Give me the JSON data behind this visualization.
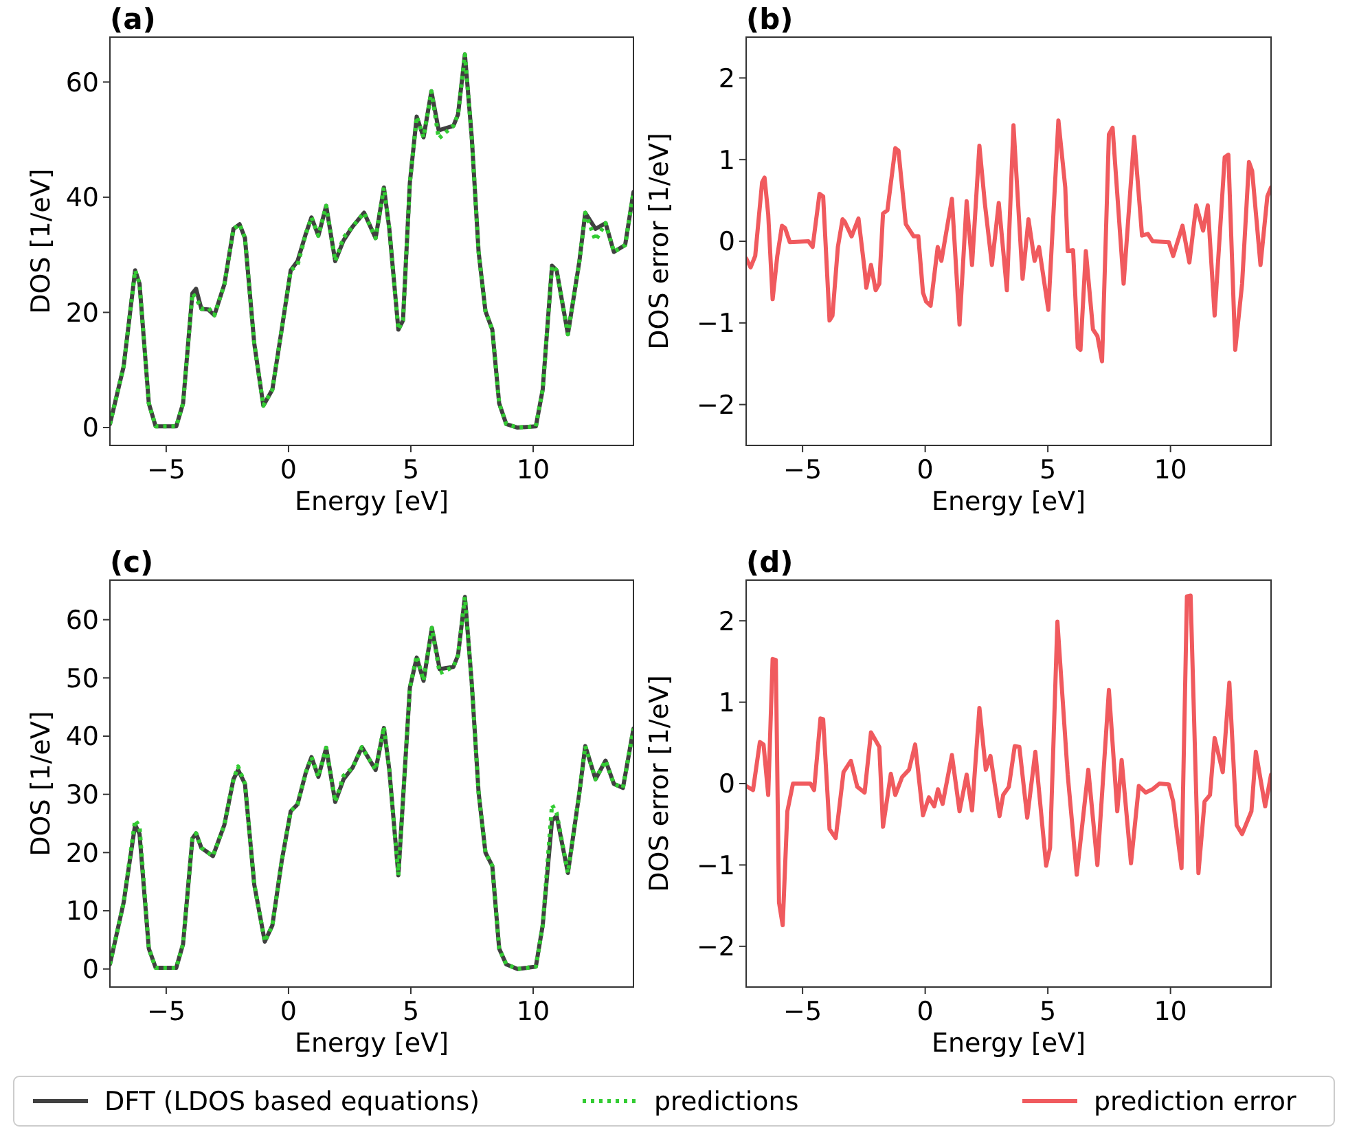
{
  "chart_data": [
    {
      "type": "line",
      "title": "(a)",
      "xlabel": "Energy [eV]",
      "ylabel": "DOS [1/eV]",
      "xlim": [
        -7.3,
        14.1
      ],
      "ylim": [
        -3.1,
        67.8
      ],
      "xticks": [
        -5,
        0,
        5,
        10
      ],
      "yticks": [
        0,
        20,
        40,
        60
      ],
      "legend": "bottom",
      "series": [
        {
          "name": "DFT (LDOS based equations)",
          "color": "#404040",
          "line_style": "solid",
          "x": [
            -7.3,
            -6.74,
            -6.27,
            -6.09,
            -5.71,
            -5.43,
            -4.59,
            -4.31,
            -3.93,
            -3.78,
            -3.56,
            -3.28,
            -3.03,
            -2.62,
            -2.25,
            -2.0,
            -1.78,
            -1.4,
            -1.03,
            -0.66,
            -0.28,
            0.09,
            0.37,
            0.71,
            0.94,
            1.22,
            1.54,
            1.91,
            2.25,
            2.62,
            3.09,
            3.56,
            3.9,
            4.12,
            4.49,
            4.68,
            4.96,
            5.24,
            5.52,
            5.84,
            6.14,
            6.74,
            6.93,
            7.21,
            7.49,
            7.77,
            8.05,
            8.33,
            8.61,
            8.9,
            9.36,
            10.11,
            10.39,
            10.77,
            10.96,
            11.42,
            11.89,
            12.13,
            12.55,
            12.96,
            13.3,
            13.76,
            14.1
          ],
          "values": [
            0.6,
            10.6,
            27.3,
            25,
            4.2,
            0.2,
            0.2,
            4.2,
            23.3,
            24.1,
            20.6,
            20.5,
            19.5,
            24.9,
            34.5,
            35.3,
            32.9,
            14.6,
            3.8,
            6.6,
            17,
            27.3,
            28.9,
            33.7,
            36.5,
            33.3,
            38.5,
            28.9,
            32.5,
            34.9,
            37.3,
            32.9,
            41.7,
            34.5,
            17,
            18.6,
            42.5,
            54,
            50.4,
            58.4,
            51.6,
            52.4,
            54.4,
            64.8,
            50.4,
            30.5,
            20.2,
            17,
            4.2,
            0.6,
            0,
            0.2,
            6.6,
            28.1,
            27.3,
            16.2,
            28.9,
            37.3,
            34.5,
            35.5,
            30.5,
            31.7,
            40.9
          ]
        },
        {
          "name": "predictions",
          "color": "#33cc33",
          "line_style": "dotted",
          "x": [
            -7.3,
            -6.74,
            -6.27,
            -6.09,
            -5.71,
            -5.43,
            -4.59,
            -4.31,
            -3.93,
            -3.78,
            -3.56,
            -3.28,
            -3.03,
            -2.62,
            -2.25,
            -2.0,
            -1.78,
            -1.4,
            -1.03,
            -0.66,
            -0.28,
            0.09,
            0.37,
            0.71,
            0.94,
            1.22,
            1.54,
            1.91,
            2.25,
            2.62,
            3.09,
            3.56,
            3.9,
            4.12,
            4.49,
            4.68,
            4.96,
            5.24,
            5.52,
            5.84,
            6.14,
            6.74,
            6.93,
            7.21,
            7.49,
            7.77,
            8.05,
            8.33,
            8.61,
            8.9,
            9.36,
            10.11,
            10.39,
            10.77,
            10.96,
            11.42,
            11.89,
            12.13,
            12.55,
            12.96,
            13.3,
            13.76,
            14.1
          ],
          "values": [
            0.6,
            10.6,
            27.3,
            25,
            4.2,
            0.2,
            0.2,
            4.2,
            23.3,
            22.5,
            20.6,
            20.8,
            19.5,
            24.9,
            34.5,
            35.3,
            32.9,
            14.6,
            3.8,
            6.6,
            17,
            27.3,
            28.2,
            33.7,
            36.5,
            33.3,
            38.5,
            28.9,
            33,
            34.9,
            37.3,
            32.9,
            41.7,
            34.5,
            17,
            18.6,
            42.5,
            54,
            50.4,
            58.4,
            50.2,
            52.4,
            54.4,
            64.8,
            50.4,
            30.5,
            20.2,
            17,
            4.2,
            0.6,
            0,
            0.2,
            6.6,
            28.1,
            27.3,
            16.2,
            28.9,
            37.3,
            32.5,
            35.5,
            30.5,
            31.7,
            40.9
          ]
        }
      ]
    },
    {
      "type": "line",
      "title": "(b)",
      "xlabel": "Energy [eV]",
      "ylabel": "DOS error [1/eV]",
      "xlim": [
        -7.3,
        14.1
      ],
      "ylim": [
        -2.5,
        2.5
      ],
      "xticks": [
        -5,
        0,
        5,
        10
      ],
      "yticks": [
        -2,
        -1,
        0,
        1,
        2
      ],
      "legend": "bottom",
      "series": [
        {
          "name": "prediction error",
          "color": "#f05a5e",
          "line_style": "solid",
          "x": [
            -7.3,
            -7.12,
            -6.93,
            -6.65,
            -6.55,
            -6.4,
            -6.22,
            -6.03,
            -5.84,
            -5.71,
            -5.52,
            -4.76,
            -4.59,
            -4.31,
            -4.16,
            -3.9,
            -3.78,
            -3.56,
            -3.37,
            -3.28,
            -3.0,
            -2.72,
            -2.47,
            -2.4,
            -2.21,
            -2.02,
            -1.87,
            -1.72,
            -1.54,
            -1.22,
            -1.09,
            -0.79,
            -0.47,
            -0.28,
            -0.09,
            0.04,
            0.22,
            0.51,
            0.66,
            1.09,
            1.4,
            1.69,
            1.91,
            2.21,
            2.43,
            2.72,
            3.0,
            3.33,
            3.6,
            3.97,
            4.21,
            4.46,
            4.64,
            5.02,
            5.43,
            5.71,
            5.81,
            6.03,
            6.22,
            6.33,
            6.55,
            6.84,
            7.02,
            7.21,
            7.49,
            7.64,
            8.09,
            8.52,
            8.84,
            9.08,
            9.27,
            9.93,
            10.11,
            10.49,
            10.77,
            11.05,
            11.33,
            11.52,
            11.8,
            12.21,
            12.36,
            12.64,
            12.92,
            13.2,
            13.33,
            13.67,
            13.95,
            14.1
          ],
          "values": [
            -0.21,
            -0.32,
            -0.18,
            0.72,
            0.78,
            0.33,
            -0.71,
            -0.18,
            0.19,
            0.16,
            -0.01,
            0,
            -0.07,
            0.58,
            0.55,
            -0.97,
            -0.91,
            -0.07,
            0.27,
            0.24,
            0.06,
            0.28,
            -0.35,
            -0.57,
            -0.29,
            -0.6,
            -0.52,
            0.34,
            0.38,
            1.14,
            1.11,
            0.21,
            0.06,
            0.06,
            -0.63,
            -0.74,
            -0.79,
            -0.07,
            -0.24,
            0.52,
            -1.02,
            0.49,
            -0.29,
            1.17,
            0.47,
            -0.29,
            0.47,
            -0.6,
            1.42,
            -0.46,
            0.27,
            -0.24,
            -0.07,
            -0.84,
            1.48,
            0.66,
            -0.12,
            -0.11,
            -1.3,
            -1.33,
            -0.12,
            -1.08,
            -1.16,
            -1.47,
            1.31,
            1.39,
            -0.52,
            1.28,
            0.07,
            0.09,
            0,
            -0.01,
            -0.18,
            0.19,
            -0.26,
            0.44,
            0.13,
            0.44,
            -0.91,
            1.03,
            1.06,
            -1.33,
            -0.52,
            0.97,
            0.86,
            -0.29,
            0.55,
            0.66
          ]
        }
      ]
    },
    {
      "type": "line",
      "title": "(c)",
      "xlabel": "Energy [eV]",
      "ylabel": "DOS [1/eV]",
      "xlim": [
        -7.3,
        14.1
      ],
      "ylim": [
        -3.1,
        66.8
      ],
      "xticks": [
        -5,
        0,
        5,
        10
      ],
      "yticks": [
        0,
        10,
        20,
        30,
        40,
        50,
        60
      ],
      "series": [
        {
          "color": "#404040",
          "line_style": "solid",
          "x": [
            -7.3,
            -6.74,
            -6.27,
            -6.09,
            -5.71,
            -5.43,
            -4.59,
            -4.31,
            -3.93,
            -3.78,
            -3.56,
            -3.09,
            -2.62,
            -2.25,
            -2.06,
            -1.78,
            -1.4,
            -0.97,
            -0.66,
            -0.28,
            0.09,
            0.37,
            0.71,
            0.94,
            1.22,
            1.54,
            1.91,
            2.25,
            2.62,
            3.0,
            3.56,
            3.9,
            4.12,
            4.49,
            4.96,
            5.24,
            5.52,
            5.86,
            6.18,
            6.74,
            6.93,
            7.21,
            7.49,
            7.77,
            8.05,
            8.33,
            8.61,
            8.9,
            9.36,
            10.11,
            10.39,
            10.77,
            10.96,
            11.42,
            11.89,
            12.13,
            12.55,
            12.96,
            13.3,
            13.67,
            14.1
          ],
          "values": [
            0.8,
            11.4,
            24.8,
            23.2,
            3.5,
            0.2,
            0.2,
            4.3,
            22.4,
            23.3,
            20.8,
            19.4,
            24.8,
            32.6,
            34.2,
            31.8,
            14.5,
            4.7,
            7.5,
            18.5,
            27.1,
            28.3,
            33.8,
            36.4,
            33,
            38,
            28.7,
            32.6,
            34.6,
            38.1,
            34.2,
            41.4,
            34.2,
            16.1,
            48.3,
            53.5,
            49.5,
            58.6,
            51.5,
            51.9,
            53.9,
            63.9,
            49.1,
            30.3,
            20,
            17.7,
            3.5,
            0.8,
            0,
            0.4,
            7.5,
            25.5,
            26.3,
            16.5,
            30.3,
            38.3,
            32.6,
            35.8,
            31.8,
            31.1,
            41.3
          ]
        },
        {
          "color": "#33cc33",
          "line_style": "dotted",
          "x": [
            -7.3,
            -6.74,
            -6.27,
            -6.09,
            -5.71,
            -5.43,
            -4.59,
            -4.31,
            -3.93,
            -3.78,
            -3.56,
            -3.09,
            -2.62,
            -2.25,
            -2.06,
            -1.78,
            -1.4,
            -0.97,
            -0.66,
            -0.28,
            0.09,
            0.37,
            0.71,
            0.94,
            1.22,
            1.54,
            1.91,
            2.25,
            2.62,
            3.0,
            3.56,
            3.9,
            4.12,
            4.49,
            4.96,
            5.24,
            5.52,
            5.86,
            6.18,
            6.74,
            6.93,
            7.21,
            7.49,
            7.77,
            8.05,
            8.33,
            8.61,
            8.9,
            9.36,
            10.11,
            10.39,
            10.77,
            10.96,
            11.42,
            11.89,
            12.13,
            12.55,
            12.96,
            13.3,
            13.67,
            14.1
          ],
          "values": [
            0.8,
            11.4,
            25.6,
            24.5,
            3.5,
            0.2,
            0.2,
            4.3,
            22.4,
            23.3,
            20.8,
            19.4,
            24.8,
            32.6,
            34.8,
            31.8,
            14.5,
            4.7,
            7.5,
            18.5,
            27.1,
            28.3,
            33.8,
            36.4,
            33,
            38,
            28.7,
            33.2,
            34.6,
            38.1,
            34.2,
            41.6,
            34.2,
            16.1,
            48.3,
            53.8,
            49.5,
            58.6,
            50.8,
            51.9,
            53.9,
            63.9,
            49.1,
            30.3,
            20,
            17.7,
            3.5,
            0.8,
            0,
            0.4,
            7.5,
            28.2,
            26.8,
            16.5,
            30.3,
            38.3,
            32.6,
            35.8,
            31.8,
            31.1,
            41.3
          ]
        }
      ]
    },
    {
      "type": "line",
      "title": "(d)",
      "xlabel": "Energy [eV]",
      "ylabel": "DOS error [1/eV]",
      "xlim": [
        -7.3,
        14.1
      ],
      "ylim": [
        -2.5,
        2.5
      ],
      "xticks": [
        -5,
        0,
        5,
        10
      ],
      "yticks": [
        -2,
        -1,
        0,
        1,
        2
      ],
      "series": [
        {
          "color": "#f05a5e",
          "line_style": "solid",
          "x": [
            -7.3,
            -7.02,
            -6.74,
            -6.59,
            -6.4,
            -6.22,
            -6.09,
            -5.96,
            -5.81,
            -5.62,
            -5.39,
            -4.68,
            -4.53,
            -4.27,
            -4.16,
            -3.9,
            -3.65,
            -3.33,
            -3.03,
            -2.77,
            -2.47,
            -2.21,
            -1.87,
            -1.72,
            -1.4,
            -1.22,
            -0.94,
            -0.66,
            -0.41,
            -0.09,
            0.15,
            0.37,
            0.52,
            0.71,
            1.09,
            1.4,
            1.69,
            1.91,
            2.21,
            2.47,
            2.66,
            3.03,
            3.18,
            3.41,
            3.65,
            3.84,
            4.16,
            4.49,
            4.93,
            5.09,
            5.39,
            5.81,
            6.18,
            6.65,
            7.02,
            7.49,
            7.83,
            8.01,
            8.39,
            8.71,
            8.99,
            9.27,
            9.55,
            9.93,
            10.11,
            10.45,
            10.67,
            10.82,
            11.14,
            11.39,
            11.61,
            11.8,
            12.13,
            12.4,
            12.7,
            12.92,
            13.3,
            13.48,
            13.86,
            14.1
          ],
          "values": [
            -0.03,
            -0.08,
            0.51,
            0.48,
            -0.14,
            1.53,
            1.52,
            -1.46,
            -1.74,
            -0.34,
            0,
            0,
            -0.08,
            0.8,
            0.79,
            -0.56,
            -0.67,
            0.14,
            0.28,
            -0.04,
            -0.11,
            0.63,
            0.45,
            -0.53,
            0.12,
            -0.14,
            0.08,
            0.17,
            0.48,
            -0.39,
            -0.17,
            -0.28,
            -0.07,
            -0.25,
            0.35,
            -0.34,
            0.11,
            -0.33,
            0.93,
            0.17,
            0.34,
            -0.4,
            -0.14,
            -0.04,
            0.46,
            0.45,
            -0.42,
            0.39,
            -1.01,
            -0.79,
            1.99,
            0.11,
            -1.12,
            0.17,
            -1,
            1.15,
            -0.34,
            0.29,
            -0.98,
            -0.03,
            -0.11,
            -0.07,
            0,
            -0.01,
            -0.22,
            -1.04,
            2.3,
            2.31,
            -1.1,
            -0.22,
            -0.14,
            0.56,
            0.14,
            1.24,
            -0.51,
            -0.62,
            -0.34,
            0.39,
            -0.28,
            0.11
          ]
        }
      ]
    }
  ]
}
